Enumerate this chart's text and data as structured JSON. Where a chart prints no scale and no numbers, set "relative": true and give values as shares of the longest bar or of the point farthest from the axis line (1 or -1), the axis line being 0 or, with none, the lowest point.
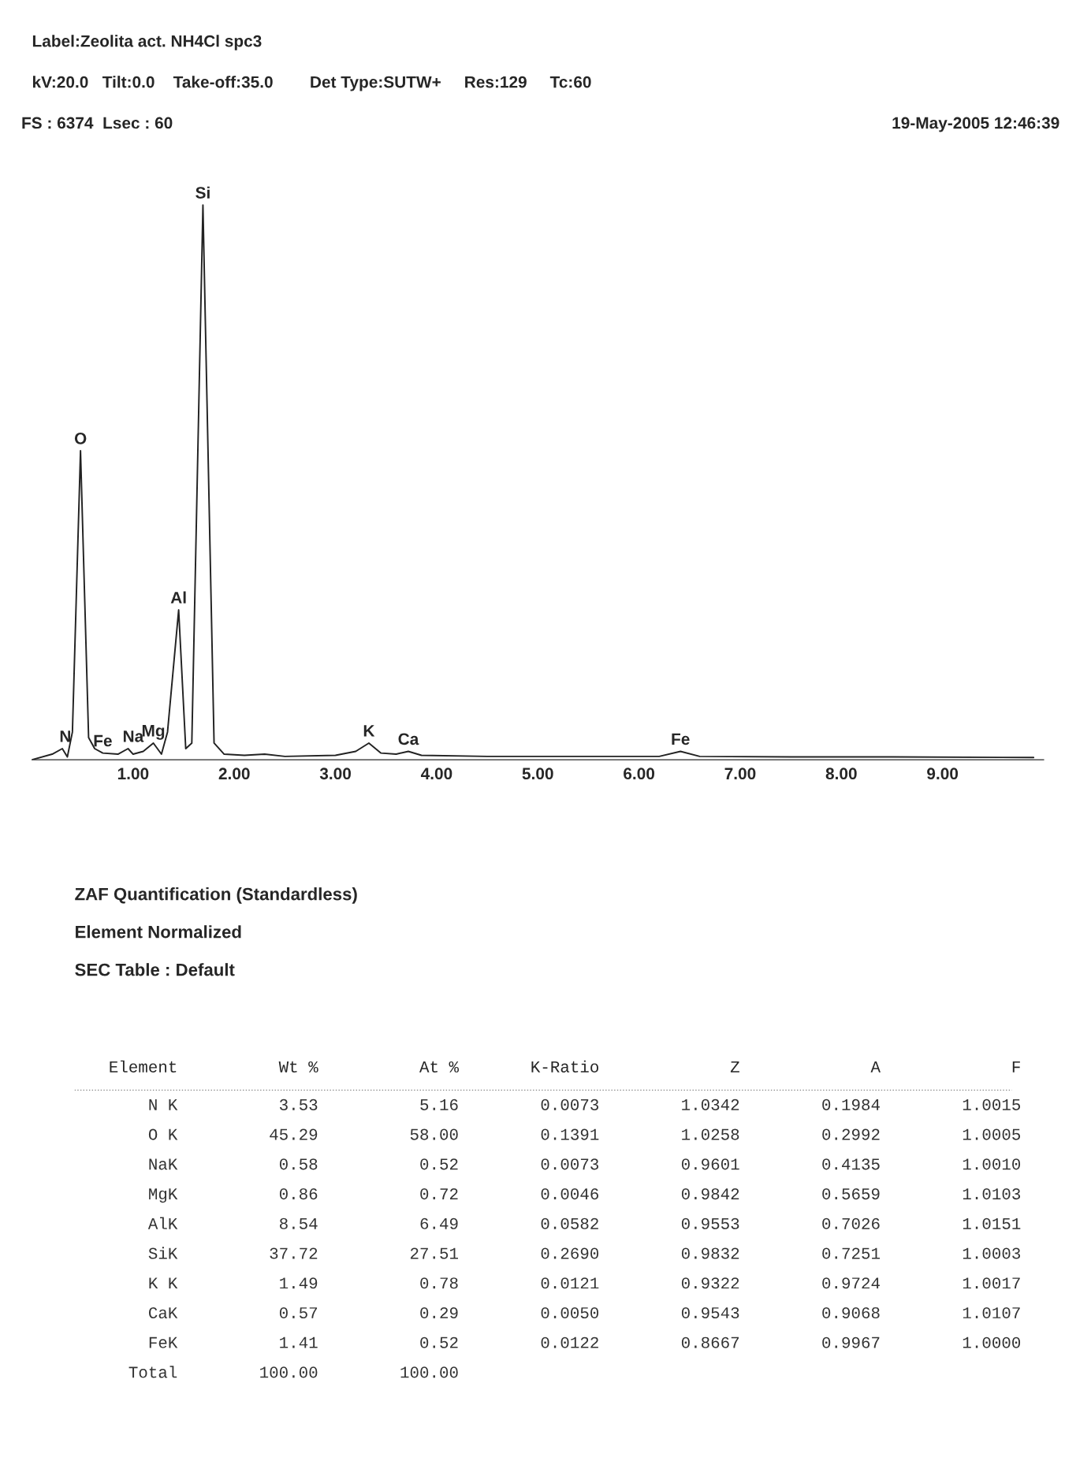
{
  "chart_data": [
    {
      "type": "line",
      "title": "Label:Zeolita act. NH4Cl spc3",
      "subtitle": "kV:20.0   Tilt:0.0    Take-off:35.0        Det Type:SUTW+     Res:129     Tc:60",
      "relative": true,
      "tick_labels": "x",
      "grid": false,
      "legend": false,
      "marker": "none",
      "line_style": "solid",
      "xlim": [
        0,
        10
      ],
      "xticks": [
        {
          "value": 1,
          "label": "1.00"
        },
        {
          "value": 2,
          "label": "2.00"
        },
        {
          "value": 3,
          "label": "3.00"
        },
        {
          "value": 4,
          "label": "4.00"
        },
        {
          "value": 5,
          "label": "5.00"
        },
        {
          "value": 6,
          "label": "6.00"
        },
        {
          "value": 7,
          "label": "7.00"
        },
        {
          "value": 8,
          "label": "8.00"
        },
        {
          "value": 9,
          "label": "9.00"
        }
      ],
      "series": [
        {
          "color": "#222222",
          "x": [
            0.0,
            0.2,
            0.3,
            0.35,
            0.4,
            0.48,
            0.56,
            0.62,
            0.7,
            0.85,
            0.95,
            1.0,
            1.1,
            1.2,
            1.28,
            1.34,
            1.45,
            1.52,
            1.58,
            1.69,
            1.8,
            1.9,
            2.1,
            2.3,
            2.5,
            3.0,
            3.2,
            3.33,
            3.45,
            3.6,
            3.72,
            3.85,
            4.5,
            5.5,
            6.2,
            6.41,
            6.6,
            7.5,
            8.5,
            9.9
          ],
          "values": [
            0.0,
            0.01,
            0.02,
            0.005,
            0.05,
            0.557,
            0.04,
            0.02,
            0.012,
            0.01,
            0.02,
            0.01,
            0.015,
            0.03,
            0.01,
            0.05,
            0.27,
            0.02,
            0.03,
            1.0,
            0.03,
            0.01,
            0.008,
            0.01,
            0.006,
            0.008,
            0.015,
            0.03,
            0.012,
            0.01,
            0.015,
            0.008,
            0.006,
            0.006,
            0.006,
            0.015,
            0.006,
            0.005,
            0.005,
            0.004
          ]
        }
      ],
      "annotations": [
        "FS : 6374  Lsec : 60",
        "19-May-2005 12:46:39",
        {
          "text": "N",
          "x": 0.33,
          "y": 0.02
        },
        {
          "text": "O",
          "x": 0.48,
          "y": 0.557
        },
        {
          "text": "Fe",
          "x": 0.7,
          "y": 0.012
        },
        {
          "text": "Na",
          "x": 1.0,
          "y": 0.02
        },
        {
          "text": "Mg",
          "x": 1.2,
          "y": 0.03
        },
        {
          "text": "Al",
          "x": 1.45,
          "y": 0.27
        },
        {
          "text": "Si",
          "x": 1.69,
          "y": 1.0
        },
        {
          "text": "K",
          "x": 3.33,
          "y": 0.03
        },
        {
          "text": "Ca",
          "x": 3.72,
          "y": 0.015
        },
        {
          "text": "Fe",
          "x": 6.41,
          "y": 0.015
        }
      ]
    },
    {
      "type": "other",
      "title": "ZAF Quantification (Standardless)",
      "subtitle": "Element Normalized",
      "annotations": [
        "SEC Table : Default"
      ],
      "categories": [
        "Element",
        "Wt %",
        "At %",
        "K-Ratio",
        "Z",
        "A",
        "F"
      ],
      "cells": [
        [
          "N K",
          "3.53",
          "5.16",
          "0.0073",
          "1.0342",
          "0.1984",
          "1.0015"
        ],
        [
          "O K",
          "45.29",
          "58.00",
          "0.1391",
          "1.0258",
          "0.2992",
          "1.0005"
        ],
        [
          "NaK",
          "0.58",
          "0.52",
          "0.0073",
          "0.9601",
          "0.4135",
          "1.0010"
        ],
        [
          "MgK",
          "0.86",
          "0.72",
          "0.0046",
          "0.9842",
          "0.5659",
          "1.0103"
        ],
        [
          "AlK",
          "8.54",
          "6.49",
          "0.0582",
          "0.9553",
          "0.7026",
          "1.0151"
        ],
        [
          "SiK",
          "37.72",
          "27.51",
          "0.2690",
          "0.9832",
          "0.7251",
          "1.0003"
        ],
        [
          "K K",
          "1.49",
          "0.78",
          "0.0121",
          "0.9322",
          "0.9724",
          "1.0017"
        ],
        [
          "CaK",
          "0.57",
          "0.29",
          "0.0050",
          "0.9543",
          "0.9068",
          "1.0107"
        ],
        [
          "FeK",
          "1.41",
          "0.52",
          "0.0122",
          "0.8667",
          "0.9967",
          "1.0000"
        ],
        [
          "Total",
          "100.00",
          "100.00",
          null,
          null,
          null,
          null
        ]
      ]
    }
  ]
}
